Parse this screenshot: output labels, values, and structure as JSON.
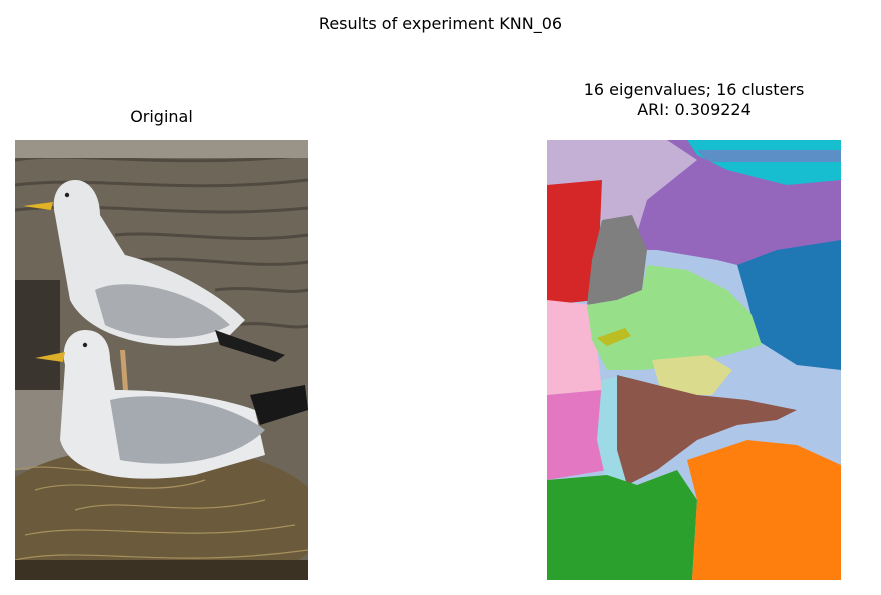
{
  "figure": {
    "title": "Results of experiment KNN_06"
  },
  "left_panel": {
    "title": "Original",
    "image_description_icon": "seagull-photo-icon"
  },
  "right_panel": {
    "title_line1": "16 eigenvalues; 16 clusters",
    "title_line2": "ARI: 0.309224",
    "image_description_icon": "segmentation-map-icon"
  },
  "palette": {
    "lavender": "#c5b0d5",
    "cyan": "#17becf",
    "purple": "#9467bd",
    "red": "#d62728",
    "gray": "#7f7f7f",
    "light_green": "#98df8a",
    "blue": "#1f77b4",
    "pink": "#f7b6d2",
    "olive": "#bcbd22",
    "khaki": "#dbdb8d",
    "light_blue": "#aec7e8",
    "magenta": "#e377c2",
    "light_cyan": "#9edae5",
    "brown": "#8c564b",
    "green": "#2ca02c",
    "orange": "#ff7f0e"
  }
}
